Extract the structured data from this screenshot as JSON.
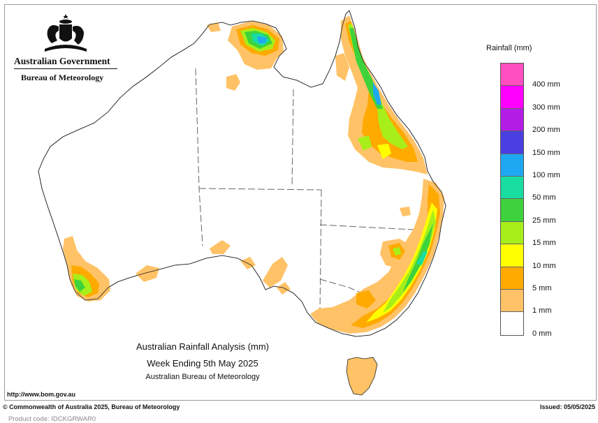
{
  "header": {
    "org": "Australian Government",
    "agency": "Bureau of Meteorology"
  },
  "legend": {
    "title": "Rainfall (mm)",
    "swatches": [
      {
        "color": "#ff4ec0"
      },
      {
        "color": "#ff00ff"
      },
      {
        "color": "#b31de6"
      },
      {
        "color": "#4a3fe0"
      },
      {
        "color": "#1fa8f2"
      },
      {
        "color": "#19dca0"
      },
      {
        "color": "#3ed23c"
      },
      {
        "color": "#a8ee1a"
      },
      {
        "color": "#ffff00"
      },
      {
        "color": "#ffaa00"
      },
      {
        "color": "#ffc266"
      },
      {
        "color": "#ffffff"
      }
    ],
    "labels": [
      "400 mm",
      "300 mm",
      "200 mm",
      "150 mm",
      "100 mm",
      "50 mm",
      "25 mm",
      "15 mm",
      "10 mm",
      "5 mm",
      "1 mm",
      "0 mm"
    ]
  },
  "map": {
    "title_line1": "Australian Rainfall Analysis (mm)",
    "title_line2": "Week Ending 5th May 2025",
    "title_line3": "Australian Bureau of Meteorology",
    "url": "http://www.bom.gov.au"
  },
  "footer": {
    "copyright": "© Commonwealth of Australia 2025, Bureau of Meteorology",
    "issued": "Issued: 05/05/2025",
    "product_code": "Product code: IDCKGRWAR0"
  },
  "colors": {
    "band_1mm": "#ffc266",
    "band_5mm": "#ffaa00",
    "band_10mm": "#ffff00",
    "band_15mm": "#a8ee1a",
    "band_25mm": "#3ed23c",
    "band_50mm": "#19dca0",
    "band_100mm": "#1fa8f2",
    "band_150mm": "#4a3fe0"
  }
}
